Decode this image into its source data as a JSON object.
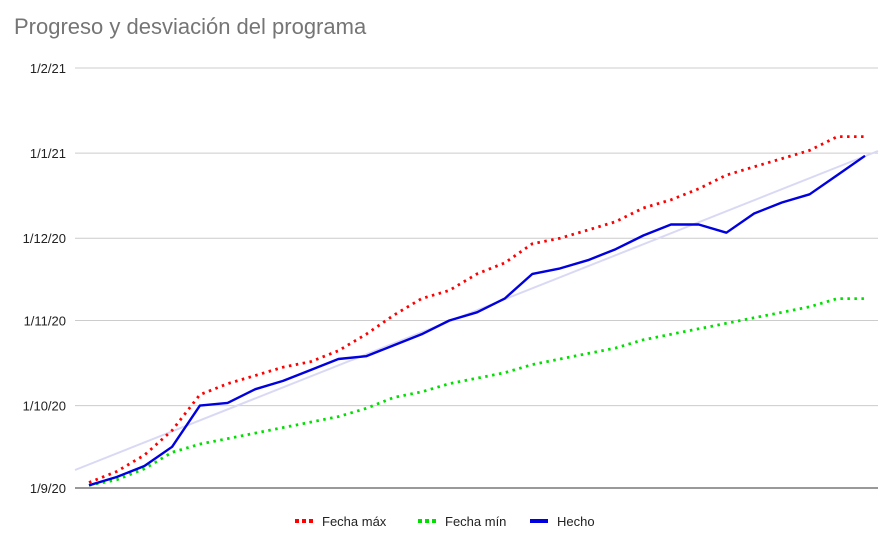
{
  "chart_data": {
    "type": "line",
    "title": "Progreso y desviación del programa",
    "xlabel": "",
    "ylabel": "",
    "y_axis_type": "date",
    "ylim": [
      "2020-09-01",
      "2021-02-01"
    ],
    "y_ticks": [
      {
        "label": "1/9/20",
        "date": "2020-09-01"
      },
      {
        "label": "1/10/20",
        "date": "2020-10-01"
      },
      {
        "label": "1/11/20",
        "date": "2020-11-01"
      },
      {
        "label": "1/12/20",
        "date": "2020-12-01"
      },
      {
        "label": "1/1/21",
        "date": "2021-01-01"
      },
      {
        "label": "1/2/21",
        "date": "2021-02-01"
      }
    ],
    "grid": true,
    "legend_position": "bottom",
    "x": [
      1,
      2,
      3,
      4,
      5,
      6,
      7,
      8,
      9,
      10,
      11,
      12,
      13,
      14,
      15,
      16,
      17,
      18,
      19,
      20,
      21,
      22,
      23,
      24,
      25,
      26,
      27,
      28,
      29
    ],
    "series": [
      {
        "name": "Fecha máx",
        "color": "#ff0000",
        "style": "dotted",
        "values": [
          "2020-09-03",
          "2020-09-07",
          "2020-09-13",
          "2020-09-22",
          "2020-10-05",
          "2020-10-09",
          "2020-10-12",
          "2020-10-15",
          "2020-10-17",
          "2020-10-21",
          "2020-10-27",
          "2020-11-03",
          "2020-11-09",
          "2020-11-12",
          "2020-11-18",
          "2020-11-22",
          "2020-11-29",
          "2020-12-01",
          "2020-12-04",
          "2020-12-07",
          "2020-12-12",
          "2020-12-15",
          "2020-12-19",
          "2020-12-24",
          "2020-12-27",
          "2020-12-30",
          "2021-01-02",
          "2021-01-07",
          "2021-01-07"
        ]
      },
      {
        "name": "Fecha mín",
        "color": "#00e000",
        "style": "dotted",
        "values": [
          "2020-09-02",
          "2020-09-04",
          "2020-09-08",
          "2020-09-14",
          "2020-09-17",
          "2020-09-19",
          "2020-09-21",
          "2020-09-23",
          "2020-09-25",
          "2020-09-27",
          "2020-09-30",
          "2020-10-04",
          "2020-10-06",
          "2020-10-09",
          "2020-10-11",
          "2020-10-13",
          "2020-10-16",
          "2020-10-18",
          "2020-10-20",
          "2020-10-22",
          "2020-10-25",
          "2020-10-27",
          "2020-10-29",
          "2020-10-31",
          "2020-11-02",
          "2020-11-04",
          "2020-11-06",
          "2020-11-09",
          "2020-11-09"
        ]
      },
      {
        "name": "Hecho",
        "color": "#0000e0",
        "style": "solid",
        "values": [
          "2020-09-02",
          "2020-09-05",
          "2020-09-09",
          "2020-09-16",
          "2020-10-01",
          "2020-10-02",
          "2020-10-07",
          "2020-10-10",
          "2020-10-14",
          "2020-10-18",
          "2020-10-19",
          "2020-10-23",
          "2020-10-27",
          "2020-11-01",
          "2020-11-04",
          "2020-11-09",
          "2020-11-18",
          "2020-11-20",
          "2020-11-23",
          "2020-11-27",
          "2020-12-02",
          "2020-12-06",
          "2020-12-06",
          "2020-12-03",
          "2020-12-10",
          "2020-12-14",
          "2020-12-17",
          "2020-12-24",
          "2020-12-31"
        ]
      }
    ]
  }
}
